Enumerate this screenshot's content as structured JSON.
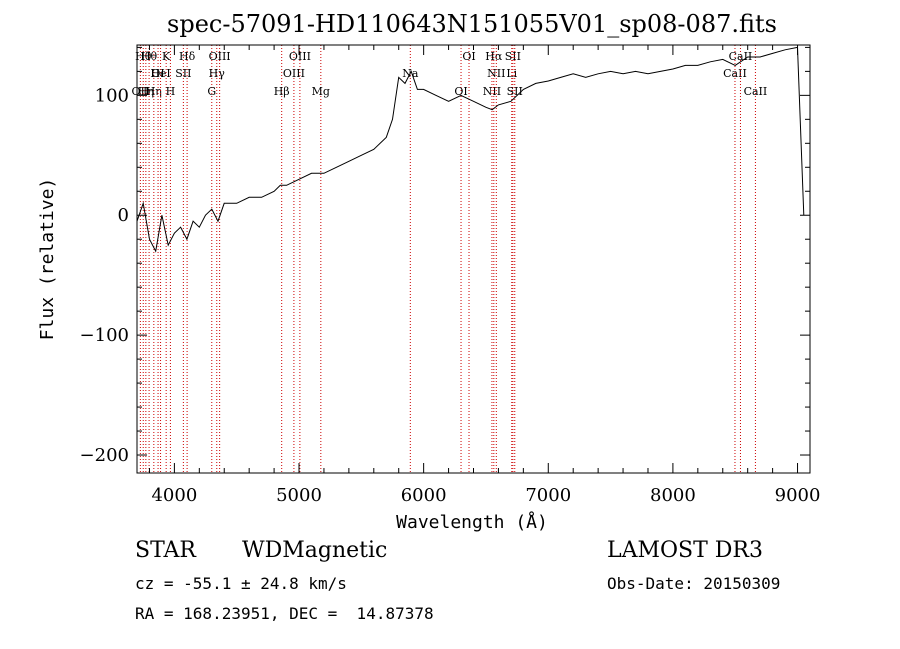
{
  "chart_data": {
    "type": "line",
    "title": "spec-57091-HD110643N151055V01_sp08-087.fits",
    "xlabel": "Wavelength (Å)",
    "ylabel": "Flux (relative)",
    "xlim": [
      3700,
      9100
    ],
    "ylim": [
      -215,
      142
    ],
    "x_ticks": [
      4000,
      5000,
      6000,
      7000,
      8000,
      9000
    ],
    "y_ticks": [
      -200,
      -100,
      0,
      100
    ],
    "grid": false,
    "series_color": "#000000",
    "line_marker_color": "#cc0000",
    "series": [
      {
        "x": [
          3700,
          3750,
          3800,
          3850,
          3900,
          3950,
          4000,
          4050,
          4100,
          4150,
          4200,
          4250,
          4300,
          4350,
          4400,
          4500,
          4600,
          4700,
          4800,
          4850,
          4900,
          5000,
          5100,
          5200,
          5300,
          5400,
          5500,
          5600,
          5700,
          5750,
          5800,
          5850,
          5900,
          5950,
          6000,
          6100,
          6200,
          6300,
          6400,
          6500,
          6550,
          6600,
          6700,
          6800,
          6900,
          7000,
          7100,
          7200,
          7300,
          7400,
          7500,
          7600,
          7700,
          7800,
          7900,
          8000,
          8100,
          8200,
          8300,
          8400,
          8500,
          8600,
          8700,
          8800,
          8900,
          9000,
          9050
        ],
        "y": [
          -5,
          10,
          -20,
          -30,
          0,
          -25,
          -15,
          -10,
          -20,
          -5,
          -10,
          0,
          5,
          -5,
          10,
          10,
          15,
          15,
          20,
          25,
          25,
          30,
          35,
          35,
          40,
          45,
          50,
          55,
          65,
          80,
          115,
          110,
          120,
          105,
          105,
          100,
          95,
          100,
          95,
          90,
          88,
          92,
          95,
          105,
          110,
          112,
          115,
          118,
          115,
          118,
          120,
          118,
          120,
          118,
          120,
          122,
          125,
          125,
          128,
          130,
          125,
          132,
          132,
          135,
          138,
          140,
          0
        ]
      }
    ],
    "spectral_lines": [
      {
        "wavelength": 3727,
        "label": "OII",
        "row": 3
      },
      {
        "wavelength": 3750,
        "label": "Hθ",
        "row": 1
      },
      {
        "wavelength": 3771,
        "label": "Hη",
        "row": 3
      },
      {
        "wavelength": 3797,
        "label": "Hθ",
        "row": 1
      },
      {
        "wavelength": 3835,
        "label": "Hη",
        "row": 3
      },
      {
        "wavelength": 3869,
        "label": "OI",
        "row": 2
      },
      {
        "wavelength": 3889,
        "label": "HeI",
        "row": 2
      },
      {
        "wavelength": 3934,
        "label": "K",
        "row": 1
      },
      {
        "wavelength": 3968,
        "label": "H",
        "row": 3
      },
      {
        "wavelength": 4072,
        "label": "SII",
        "row": 2
      },
      {
        "wavelength": 4102,
        "label": "Hδ",
        "row": 1
      },
      {
        "wavelength": 4300,
        "label": "G",
        "row": 3
      },
      {
        "wavelength": 4340,
        "label": "Hγ",
        "row": 2
      },
      {
        "wavelength": 4363,
        "label": "OIII",
        "row": 1
      },
      {
        "wavelength": 4861,
        "label": "Hβ",
        "row": 3
      },
      {
        "wavelength": 4959,
        "label": "OIII",
        "row": 2
      },
      {
        "wavelength": 5007,
        "label": "OIII",
        "row": 1
      },
      {
        "wavelength": 5175,
        "label": "Mg",
        "row": 3
      },
      {
        "wavelength": 5893,
        "label": "Na",
        "row": 2
      },
      {
        "wavelength": 6300,
        "label": "OI",
        "row": 3
      },
      {
        "wavelength": 6364,
        "label": "OI",
        "row": 1
      },
      {
        "wavelength": 6548,
        "label": "NII",
        "row": 3
      },
      {
        "wavelength": 6563,
        "label": "Hα",
        "row": 1
      },
      {
        "wavelength": 6583,
        "label": "NII",
        "row": 2
      },
      {
        "wavelength": 6707,
        "label": "Li",
        "row": 2
      },
      {
        "wavelength": 6716,
        "label": "SII",
        "row": 1
      },
      {
        "wavelength": 6731,
        "label": "SII",
        "row": 3
      },
      {
        "wavelength": 8498,
        "label": "CaII",
        "row": 2
      },
      {
        "wavelength": 8542,
        "label": "CaII",
        "row": 1
      },
      {
        "wavelength": 8662,
        "label": "CaII",
        "row": 3
      }
    ]
  },
  "info": {
    "object_class": "STAR",
    "subclass": "WDMagnetic",
    "survey": "LAMOST DR3",
    "redshift": "cz = -55.1 ± 24.8 km/s",
    "obs_date": "Obs-Date: 20150309",
    "coords": "RA = 168.23951, DEC =  14.87378"
  }
}
